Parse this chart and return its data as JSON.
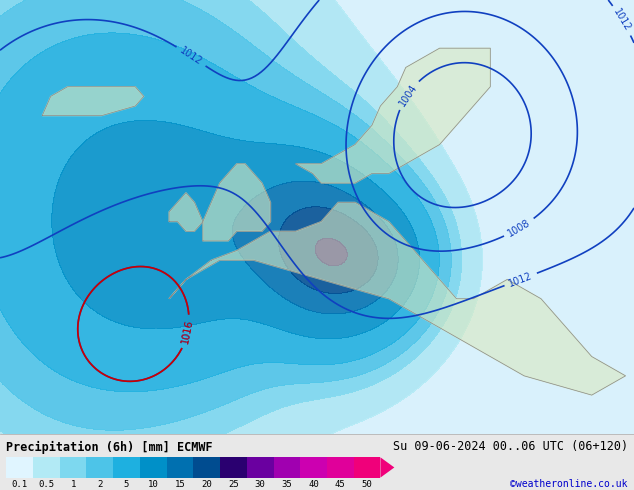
{
  "title_left": "Precipitation (6h) [mm] ECMWF",
  "title_right": "Su 09-06-2024 00..06 UTC (06+120)",
  "credit": "©weatheronline.co.uk",
  "colorbar_colors": [
    "#e0f5ff",
    "#b2eaf5",
    "#7dd8ef",
    "#4dc4e8",
    "#1eb0e0",
    "#0090c8",
    "#0070b0",
    "#004c90",
    "#2a0070",
    "#6a00a0",
    "#a000b0",
    "#cc00b0",
    "#e0009a",
    "#f0007a"
  ],
  "colorbar_labels": [
    "0.1",
    "0.5",
    "1",
    "2",
    "5",
    "10",
    "15",
    "20",
    "25",
    "30",
    "35",
    "40",
    "45",
    "50"
  ],
  "fig_width": 6.34,
  "fig_height": 4.9,
  "dpi": 100
}
